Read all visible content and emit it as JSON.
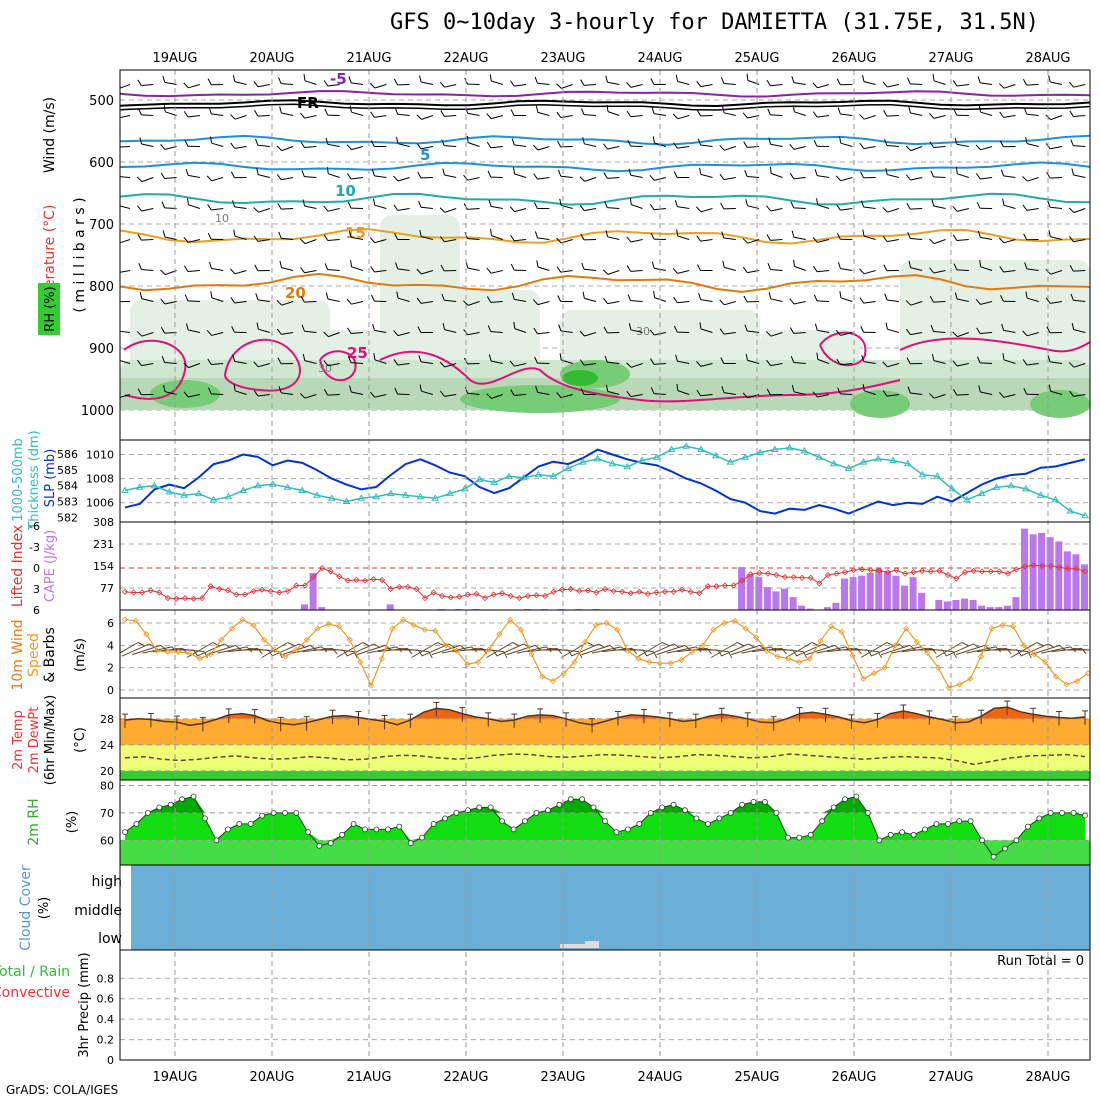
{
  "title": "GFS 0~10day 3-hourly for DAMIETTA (31.75E, 31.5N)",
  "credit": "GrADS: COLA/IGES",
  "dates": [
    "19AUG",
    "20AUG",
    "21AUG",
    "22AUG",
    "23AUG",
    "24AUG",
    "25AUG",
    "26AUG",
    "27AUG",
    "28AUG"
  ],
  "colors": {
    "rh": "#33cc33",
    "temp": "#ff8800",
    "wind": "#000000",
    "slp": "#0033cc",
    "thick": "#33bbbb",
    "cape": "#bb77ee",
    "li": "#dd3333",
    "wind10": "#ee9922",
    "cloud": "#6baed6",
    "precip": "#33cc33"
  },
  "chart_data": [
    {
      "type": "heatmap",
      "panel": "upper-air",
      "ylabels": [
        "Wind (m/s)",
        "Temperature (°C)",
        "RH (%)",
        "( m i l l i b a r s )"
      ],
      "yticks": [
        "500",
        "600",
        "700",
        "800",
        "900",
        "1000"
      ],
      "ylim": [
        1000,
        450
      ],
      "isotherm_labels": [
        "-5",
        "FR",
        "5",
        "10",
        "15",
        "20",
        "25"
      ],
      "rh_labels": [
        "10",
        "30",
        "30"
      ]
    },
    {
      "type": "line",
      "panel": "slp-thickness",
      "ylabels_left": [
        "1000-500mb",
        "Thickness (dm)"
      ],
      "ylabel_right": "SLP (mb)",
      "thickness_ticks": [
        "586",
        "585",
        "584",
        "583",
        "582"
      ],
      "slp_ticks": [
        "1010",
        "1008",
        "1006"
      ],
      "series": [
        {
          "name": "SLP (mb)",
          "values": [
            1005.6,
            1005.9,
            1007.1,
            1007.5,
            1007.2,
            1008.1,
            1009.2,
            1009.5,
            1010.0,
            1009.8,
            1009.1,
            1009.5,
            1009.3,
            1008.7,
            1008.0,
            1007.5,
            1007.1,
            1007.3,
            1008.3,
            1009.2,
            1009.6,
            1009.1,
            1008.5,
            1008.2,
            1007.3,
            1006.8,
            1007.2,
            1008.1,
            1009.0,
            1009.4,
            1009.2,
            1009.7,
            1010.4,
            1010.0,
            1009.6,
            1009.3,
            1009.1,
            1008.6,
            1008.0,
            1007.6,
            1007.0,
            1006.3,
            1006.0,
            1005.3,
            1005.1,
            1005.5,
            1005.4,
            1005.8,
            1005.5,
            1005.1,
            1005.6,
            1006.1,
            1005.8,
            1006.0,
            1005.9,
            1006.5,
            1006.1,
            1006.8,
            1007.5,
            1008.0,
            1008.3,
            1008.4,
            1008.9,
            1009.0,
            1009.3,
            1009.6
          ]
        },
        {
          "name": "1000-500mb Thickness (dm)",
          "values": [
            583.7,
            583.9,
            584.0,
            583.6,
            583.4,
            583.5,
            583.1,
            583.3,
            583.7,
            584.0,
            584.1,
            583.9,
            583.7,
            583.4,
            583.2,
            583.0,
            583.2,
            583.3,
            583.5,
            583.4,
            583.3,
            583.2,
            583.5,
            583.8,
            584.4,
            584.2,
            584.6,
            584.5,
            584.7,
            584.6,
            585.1,
            585.5,
            585.7,
            585.4,
            585.2,
            585.6,
            585.8,
            586.3,
            586.5,
            586.3,
            585.9,
            585.5,
            585.8,
            586.1,
            586.3,
            586.4,
            586.2,
            585.8,
            585.4,
            585.1,
            585.5,
            585.7,
            585.6,
            585.4,
            584.7,
            584.6,
            583.8,
            583.1,
            583.5,
            583.9,
            584.0,
            583.8,
            583.4,
            583.1,
            582.4,
            582.1
          ]
        }
      ]
    },
    {
      "type": "bar",
      "panel": "cape-li",
      "ylabels_left": [
        "Lifted Index"
      ],
      "ylabel_right": "CAPE (J/kg)",
      "li_ticks": [
        "-6",
        "-3",
        "0",
        "3",
        "6"
      ],
      "cape_ticks": [
        "308",
        "231",
        "154",
        "77"
      ],
      "series": [
        {
          "name": "CAPE (J/kg)",
          "values": [
            0,
            0,
            0,
            0,
            0,
            0,
            0,
            0,
            0,
            0,
            0,
            0,
            0,
            0,
            0,
            0,
            0,
            0,
            0,
            0,
            0,
            20,
            130,
            10,
            0,
            0,
            0,
            0,
            0,
            0,
            0,
            20,
            0,
            0,
            0,
            0,
            0,
            3,
            0,
            3,
            0,
            3,
            0,
            0,
            0,
            0,
            0,
            3,
            0,
            3,
            0,
            3,
            0,
            3,
            0,
            3,
            0,
            0,
            0,
            0,
            0,
            0,
            0,
            0,
            0,
            0,
            0,
            0,
            0,
            0,
            0,
            0,
            150,
            125,
            115,
            80,
            65,
            75,
            45,
            15,
            5,
            0,
            10,
            25,
            110,
            115,
            120,
            130,
            145,
            135,
            120,
            85,
            115,
            60,
            0,
            35,
            30,
            35,
            40,
            35,
            15,
            10,
            10,
            15,
            45,
            285,
            265,
            270,
            255,
            240,
            205,
            195,
            160
          ]
        },
        {
          "name": "Lifted Index",
          "values": [
            3.4,
            3.5,
            3.5,
            3.2,
            3.5,
            4.3,
            4.4,
            4.3,
            4.4,
            4.3,
            2.6,
            3.0,
            3.2,
            3.8,
            3.8,
            3.3,
            3.1,
            3.3,
            3.5,
            3.3,
            2.5,
            2.5,
            1.3,
            0.0,
            0.5,
            1.2,
            1.8,
            1.7,
            1.8,
            1.6,
            1.7,
            3.0,
            2.7,
            2.7,
            3.0,
            4.3,
            3.5,
            4.0,
            4.2,
            4.1,
            3.8,
            3.7,
            4.3,
            3.8,
            3.6,
            4.0,
            4.3,
            4.0,
            3.9,
            4.0,
            3.4,
            3.1,
            3.0,
            3.3,
            3.2,
            3.5,
            3.0,
            3.3,
            3.4,
            3.6,
            3.4,
            3.7,
            3.5,
            3.4,
            3.4,
            3.1,
            3.4,
            3.6,
            2.6,
            2.6,
            2.5,
            2.5,
            1.8,
            0.9,
            0.7,
            0.8,
            1.0,
            1.3,
            1.3,
            1.4,
            1.4,
            2.2,
            1.0,
            0.8,
            0.6,
            0.3,
            0.2,
            0.3,
            0.4,
            0.6,
            0.3,
            0.8,
            0.6,
            0.4,
            0.5,
            0.4,
            1.0,
            1.5,
            0.6,
            0.4,
            0.5,
            0.5,
            0.5,
            0.8,
            0.2,
            -0.2,
            -0.4,
            -0.3,
            -0.3,
            -0.1,
            0.1,
            0.1,
            0.5
          ]
        }
      ]
    },
    {
      "type": "line",
      "panel": "wind10m",
      "ylabels_left": [
        "10m Wind",
        "Speed",
        "& Barbs"
      ],
      "ylabel_right": "(m/s)",
      "yticks": [
        "0",
        "2",
        "4",
        "6"
      ],
      "values": [
        6.3,
        6.2,
        5.0,
        3.5,
        3.4,
        3.4,
        3.3,
        2.8,
        3.2,
        4.5,
        5.5,
        6.3,
        5.8,
        4.5,
        3.6,
        3.0,
        3.6,
        4.5,
        5.5,
        5.9,
        5.7,
        4.5,
        2.5,
        0.4,
        2.8,
        5.5,
        6.3,
        5.8,
        5.4,
        5.3,
        4.0,
        3.5,
        2.3,
        2.5,
        3.6,
        5.0,
        6.3,
        5.4,
        3.2,
        1.2,
        0.8,
        1.5,
        2.5,
        4.3,
        5.8,
        6.0,
        5.4,
        3.5,
        2.8,
        2.5,
        2.4,
        2.4,
        2.7,
        3.4,
        4.0,
        5.4,
        6.0,
        6.2,
        5.5,
        4.7,
        3.5,
        3.0,
        2.8,
        2.5,
        2.8,
        4.4,
        5.7,
        5.2,
        3.1,
        1.0,
        1.5,
        2.0,
        4.0,
        5.5,
        4.3,
        3.3,
        2.0,
        0.2,
        0.5,
        1.0,
        3.0,
        5.5,
        5.8,
        5.7,
        4.0,
        3.2,
        2.5,
        1.2,
        0.5,
        0.8,
        1.5
      ]
    },
    {
      "type": "area",
      "panel": "temp2m",
      "ylabels_left": [
        "2m Temp",
        "2m DewPt",
        "(6hr Min/Max)"
      ],
      "ylabel_right": "(°C)",
      "yticks": [
        "20",
        "24",
        "28"
      ],
      "series": [
        {
          "name": "2m Temp",
          "values": [
            27.8,
            28.0,
            27.9,
            27.6,
            27.5,
            27.0,
            27.3,
            27.9,
            28.6,
            28.8,
            28.5,
            27.7,
            27.3,
            27.1,
            27.4,
            27.9,
            28.4,
            28.5,
            28.2,
            27.9,
            27.6,
            27.1,
            27.8,
            29.0,
            29.6,
            29.4,
            28.8,
            28.3,
            28.0,
            27.6,
            27.8,
            28.4,
            28.6,
            28.5,
            28.0,
            27.4,
            27.1,
            27.6,
            28.2,
            28.6,
            28.5,
            28.3,
            28.0,
            27.6,
            27.8,
            28.4,
            28.7,
            28.4,
            28.0,
            27.5,
            27.4,
            28.0,
            28.8,
            29.0,
            28.7,
            28.3,
            27.7,
            27.4,
            27.9,
            28.8,
            29.2,
            28.8,
            28.3,
            27.9,
            27.4,
            27.5,
            28.4,
            29.6,
            29.8,
            29.1,
            28.7,
            28.4,
            28.2,
            28.1,
            28.3
          ]
        },
        {
          "name": "2m DewPt",
          "values": [
            22.0,
            22.2,
            21.8,
            21.6,
            21.8,
            22.1,
            22.3,
            22.0,
            21.8,
            21.9,
            22.2,
            22.0,
            21.7,
            21.8,
            22.2,
            22.4,
            22.3,
            22.0,
            21.8,
            22.0,
            22.4,
            22.6,
            22.5,
            22.2,
            22.1,
            22.3,
            22.5,
            22.4,
            22.2,
            22.0,
            22.2,
            22.5,
            22.4,
            22.2,
            22.0,
            22.2,
            22.6,
            22.4,
            22.2,
            22.0,
            21.8,
            22.0,
            22.2,
            22.1,
            22.0,
            21.6,
            21.0,
            21.5,
            22.0,
            22.3,
            22.4,
            22.5,
            22.2
          ]
        }
      ]
    },
    {
      "type": "area",
      "panel": "rh2m",
      "ylabels_left": [
        "2m RH"
      ],
      "ylabel_right": "(%)",
      "yticks": [
        "60",
        "70",
        "80"
      ],
      "values": [
        63,
        66,
        70,
        72,
        73,
        75,
        76,
        68,
        60,
        64,
        66,
        66,
        69,
        70,
        70,
        70,
        63,
        58,
        59,
        62,
        66,
        64,
        64,
        64,
        65,
        59,
        61,
        66,
        68,
        70,
        71,
        72,
        72,
        67,
        64,
        67,
        70,
        71,
        73,
        75,
        75,
        72,
        67,
        63,
        64,
        66,
        70,
        72,
        73,
        71,
        68,
        66,
        68,
        70,
        73,
        74,
        74,
        70,
        61,
        61,
        62,
        67,
        72,
        75,
        76,
        70,
        60,
        62,
        63,
        62,
        64,
        66,
        66,
        67,
        67,
        60,
        54,
        57,
        60,
        65,
        68,
        70,
        70,
        70,
        69
      ]
    },
    {
      "type": "table",
      "panel": "cloud",
      "ylabels_left": [
        "Cloud Cover",
        "(%)"
      ],
      "levels": [
        "high",
        "middle",
        "low"
      ]
    },
    {
      "type": "bar",
      "panel": "precip",
      "ylabels_left": [
        "Total / Rain",
        "Convective"
      ],
      "ylabel_right": "3hr Precip (mm)",
      "yticks": [
        "0",
        "0.2",
        "0.4",
        "0.6",
        "0.8"
      ],
      "run_total": "Run Total = 0",
      "values": []
    }
  ]
}
